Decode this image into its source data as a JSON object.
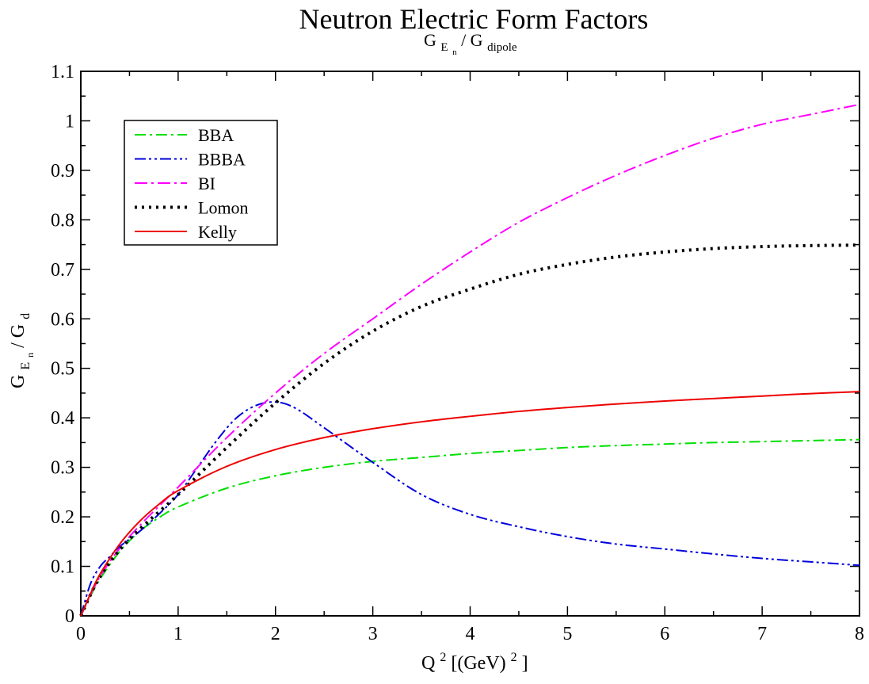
{
  "chart_data": {
    "type": "line",
    "title": "Neutron Electric Form Factors",
    "subtitle": {
      "main": "G",
      "sub": "E",
      "subsub": "n",
      "rest": " / G",
      "rest_sub": "dipole"
    },
    "xlabel": {
      "main": "Q",
      "sup": "2",
      "rest": "[(GeV)",
      "rest_sup": "2",
      "end": "]"
    },
    "ylabel": {
      "main": "G",
      "sub": "E",
      "subsub": "n",
      "rest": " / G",
      "rest_sub": "d"
    },
    "xlim": [
      0,
      8
    ],
    "ylim": [
      0,
      1.1
    ],
    "xticks": [
      0,
      1,
      2,
      3,
      4,
      5,
      6,
      7,
      8
    ],
    "xtick_labels": [
      "0",
      "1",
      "2",
      "3",
      "4",
      "5",
      "6",
      "7",
      "8"
    ],
    "yticks": [
      0,
      0.1,
      0.2,
      0.3,
      0.4,
      0.5,
      0.6,
      0.7,
      0.8,
      0.9,
      1,
      1.1
    ],
    "ytick_labels": [
      "0",
      "0.1",
      "0.2",
      "0.3",
      "0.4",
      "0.5",
      "0.6",
      "0.7",
      "0.8",
      "0.9",
      "1",
      "1.1"
    ],
    "grid": false,
    "legend_position": "top-left",
    "series": [
      {
        "name": "BBA",
        "color": "#00e000",
        "dash": "14,5,3,5",
        "x": [
          0,
          0.1,
          0.2,
          0.4,
          0.6,
          0.8,
          1.0,
          1.5,
          2.0,
          2.5,
          3.0,
          3.5,
          4.0,
          4.5,
          5.0,
          5.5,
          6.0,
          6.5,
          7.0,
          7.5,
          8.0
        ],
        "y": [
          0,
          0.04,
          0.075,
          0.13,
          0.17,
          0.198,
          0.22,
          0.258,
          0.283,
          0.3,
          0.312,
          0.32,
          0.328,
          0.334,
          0.34,
          0.344,
          0.347,
          0.35,
          0.352,
          0.354,
          0.356
        ]
      },
      {
        "name": "BBBA",
        "color": "#0000dd",
        "dash": "14,4,3,4,3,4",
        "x": [
          0,
          0.1,
          0.2,
          0.3,
          0.4,
          0.6,
          0.8,
          1.0,
          1.2,
          1.4,
          1.6,
          1.8,
          2.0,
          2.2,
          2.5,
          3.0,
          3.5,
          4.0,
          4.5,
          5.0,
          5.5,
          6.0,
          6.5,
          7.0,
          7.5,
          8.0
        ],
        "y": [
          0,
          0.065,
          0.1,
          0.12,
          0.14,
          0.17,
          0.205,
          0.245,
          0.3,
          0.355,
          0.4,
          0.425,
          0.432,
          0.42,
          0.38,
          0.31,
          0.245,
          0.205,
          0.18,
          0.16,
          0.145,
          0.135,
          0.125,
          0.116,
          0.109,
          0.102
        ]
      },
      {
        "name": "BI",
        "color": "#ff00ff",
        "dash": "16,5,3,5",
        "x": [
          0,
          0.2,
          0.5,
          1.0,
          1.5,
          2.0,
          2.5,
          3.0,
          3.5,
          4.0,
          4.5,
          5.0,
          5.5,
          6.0,
          6.5,
          7.0,
          7.5,
          8.0
        ],
        "y": [
          0,
          0.08,
          0.16,
          0.26,
          0.36,
          0.45,
          0.53,
          0.6,
          0.67,
          0.735,
          0.795,
          0.845,
          0.89,
          0.93,
          0.965,
          0.993,
          1.013,
          1.033
        ]
      },
      {
        "name": "Lomon",
        "color": "#000000",
        "dash": "3,6",
        "x": [
          0,
          0.2,
          0.5,
          1.0,
          1.5,
          2.0,
          2.5,
          3.0,
          3.5,
          4.0,
          4.5,
          5.0,
          5.5,
          6.0,
          6.5,
          7.0,
          7.5,
          8.0
        ],
        "y": [
          0,
          0.08,
          0.155,
          0.245,
          0.34,
          0.43,
          0.51,
          0.575,
          0.625,
          0.66,
          0.69,
          0.71,
          0.725,
          0.735,
          0.742,
          0.746,
          0.748,
          0.749
        ]
      },
      {
        "name": "Kelly",
        "color": "#ee0000",
        "dash": "",
        "x": [
          0,
          0.1,
          0.2,
          0.4,
          0.6,
          0.8,
          1.0,
          1.5,
          2.0,
          2.5,
          3.0,
          3.5,
          4.0,
          4.5,
          5.0,
          5.5,
          6.0,
          6.5,
          7.0,
          7.5,
          8.0
        ],
        "y": [
          0,
          0.045,
          0.085,
          0.145,
          0.19,
          0.225,
          0.253,
          0.302,
          0.336,
          0.36,
          0.378,
          0.392,
          0.403,
          0.413,
          0.421,
          0.428,
          0.434,
          0.439,
          0.444,
          0.449,
          0.453
        ]
      }
    ]
  }
}
